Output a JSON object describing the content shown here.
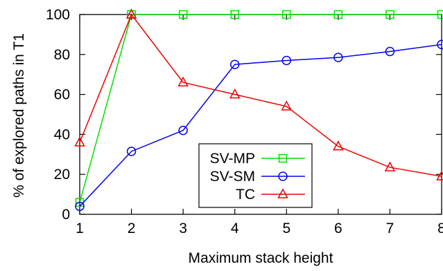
{
  "chart_data": {
    "type": "line",
    "title": "",
    "xlabel": "Maximum stack height",
    "ylabel": "% of explored paths in T1",
    "x": [
      1,
      2,
      3,
      4,
      5,
      6,
      7,
      8
    ],
    "xlim": [
      1,
      8
    ],
    "ylim": [
      0,
      100
    ],
    "xticks": [
      "1",
      "2",
      "3",
      "4",
      "5",
      "6",
      "7",
      "8"
    ],
    "yticks": [
      "0",
      "20",
      "40",
      "60",
      "80",
      "100"
    ],
    "ytick_values": [
      0,
      20,
      40,
      60,
      80,
      100
    ],
    "grid": false,
    "legend_position": "bottom-center",
    "series": [
      {
        "name": "SV-MP",
        "color": "#00dd00",
        "marker": "square",
        "values": [
          6,
          100,
          100,
          100,
          100,
          100,
          100,
          100
        ]
      },
      {
        "name": "SV-SM",
        "color": "#0000ee",
        "marker": "circle",
        "values": [
          4,
          31.5,
          42,
          75,
          77,
          78.5,
          81.5,
          85
        ]
      },
      {
        "name": "TC",
        "color": "#ee0000",
        "marker": "triangle",
        "values": [
          36,
          100,
          66,
          60,
          54,
          34,
          23.5,
          19
        ]
      }
    ]
  }
}
